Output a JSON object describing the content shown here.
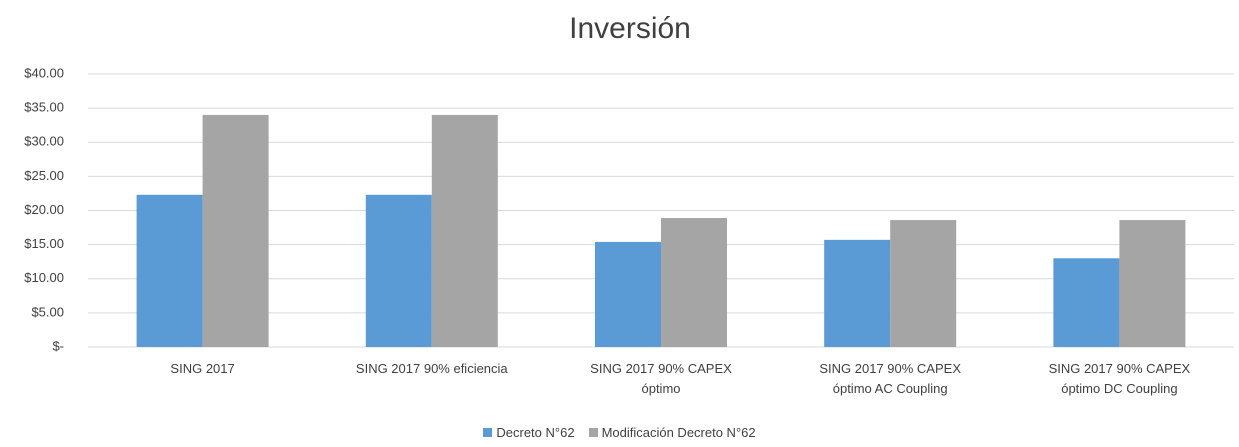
{
  "chart_data": {
    "type": "bar",
    "title": "Inversión",
    "categories": [
      "SING 2017",
      "SING 2017 90% eficiencia",
      "SING 2017 90% CAPEX óptimo",
      "SING 2017 90% CAPEX óptimo AC Coupling",
      "SING 2017 90% CAPEX óptimo DC Coupling"
    ],
    "series": [
      {
        "name": "Decreto N°62",
        "color": "#5b9bd5",
        "values": [
          22.3,
          22.3,
          15.4,
          15.7,
          13.0
        ]
      },
      {
        "name": "Modificación Decreto N°62",
        "color": "#a5a5a5",
        "values": [
          34.0,
          34.0,
          18.9,
          18.6,
          18.6
        ]
      }
    ],
    "ylim": [
      0,
      40
    ],
    "yticks": [
      {
        "value": 0,
        "label": "$-"
      },
      {
        "value": 5,
        "label": "$5.00"
      },
      {
        "value": 10,
        "label": "$10.00"
      },
      {
        "value": 15,
        "label": "$15.00"
      },
      {
        "value": 20,
        "label": "$20.00"
      },
      {
        "value": 25,
        "label": "$25.00"
      },
      {
        "value": 30,
        "label": "$30.00"
      },
      {
        "value": 35,
        "label": "$35.00"
      },
      {
        "value": 40,
        "label": "$40.00"
      }
    ],
    "grid": true,
    "legend": "bottom"
  }
}
